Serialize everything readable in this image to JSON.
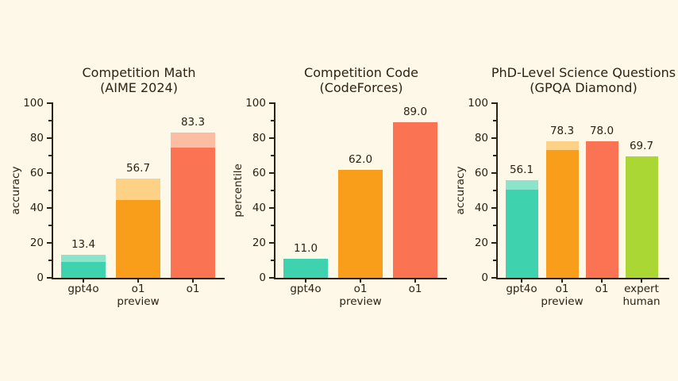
{
  "page": {
    "background": "#fdf8e8",
    "text_color": "#2e2212",
    "axis_color": "#2e2212"
  },
  "chart_data": [
    {
      "type": "bar",
      "title": "Competition Math\n(AIME 2024)",
      "ylabel": "accuracy",
      "ylim": [
        0,
        100
      ],
      "yticks": [
        0,
        20,
        40,
        60,
        80,
        100
      ],
      "grid": false,
      "legend": false,
      "categories": [
        "gpt4o",
        "o1\npreview",
        "o1"
      ],
      "bars": [
        {
          "category": "gpt4o",
          "solid": 9.3,
          "total": 13.4,
          "label": "13.4",
          "color": "#3ed3ae",
          "color_light": "#8ce4cb"
        },
        {
          "category": "o1\npreview",
          "solid": 44.6,
          "total": 56.7,
          "label": "56.7",
          "color": "#f99e1b",
          "color_light": "#fdd287"
        },
        {
          "category": "o1",
          "solid": 74.4,
          "total": 83.3,
          "label": "83.3",
          "color": "#fa7353",
          "color_light": "#fbbea2"
        }
      ]
    },
    {
      "type": "bar",
      "title": "Competition Code\n(CodeForces)",
      "ylabel": "percentile",
      "ylim": [
        0,
        100
      ],
      "yticks": [
        0,
        20,
        40,
        60,
        80,
        100
      ],
      "grid": false,
      "legend": false,
      "categories": [
        "gpt4o",
        "o1\npreview",
        "o1"
      ],
      "bars": [
        {
          "category": "gpt4o",
          "solid": 11.0,
          "total": 11.0,
          "label": "11.0",
          "color": "#3ed3ae"
        },
        {
          "category": "o1\npreview",
          "solid": 62.0,
          "total": 62.0,
          "label": "62.0",
          "color": "#f99e1b"
        },
        {
          "category": "o1",
          "solid": 89.0,
          "total": 89.0,
          "label": "89.0",
          "color": "#fa7353"
        }
      ]
    },
    {
      "type": "bar",
      "title": "PhD-Level Science Questions\n(GPQA Diamond)",
      "ylabel": "accuracy",
      "ylim": [
        0,
        100
      ],
      "yticks": [
        0,
        20,
        40,
        60,
        80,
        100
      ],
      "grid": false,
      "legend": false,
      "categories": [
        "gpt4o",
        "o1\npreview",
        "o1",
        "expert\nhuman"
      ],
      "bars": [
        {
          "category": "gpt4o",
          "solid": 50.6,
          "total": 56.1,
          "label": "56.1",
          "color": "#3ed3ae",
          "color_light": "#8ce4cb"
        },
        {
          "category": "o1\npreview",
          "solid": 73.3,
          "total": 78.3,
          "label": "78.3",
          "color": "#f99e1b",
          "color_light": "#fdd287"
        },
        {
          "category": "o1",
          "solid": 78.0,
          "total": 78.0,
          "label": "78.0",
          "color": "#fa7353"
        },
        {
          "category": "expert\nhuman",
          "solid": 69.7,
          "total": 69.7,
          "label": "69.7",
          "color": "#aad734"
        }
      ]
    }
  ]
}
